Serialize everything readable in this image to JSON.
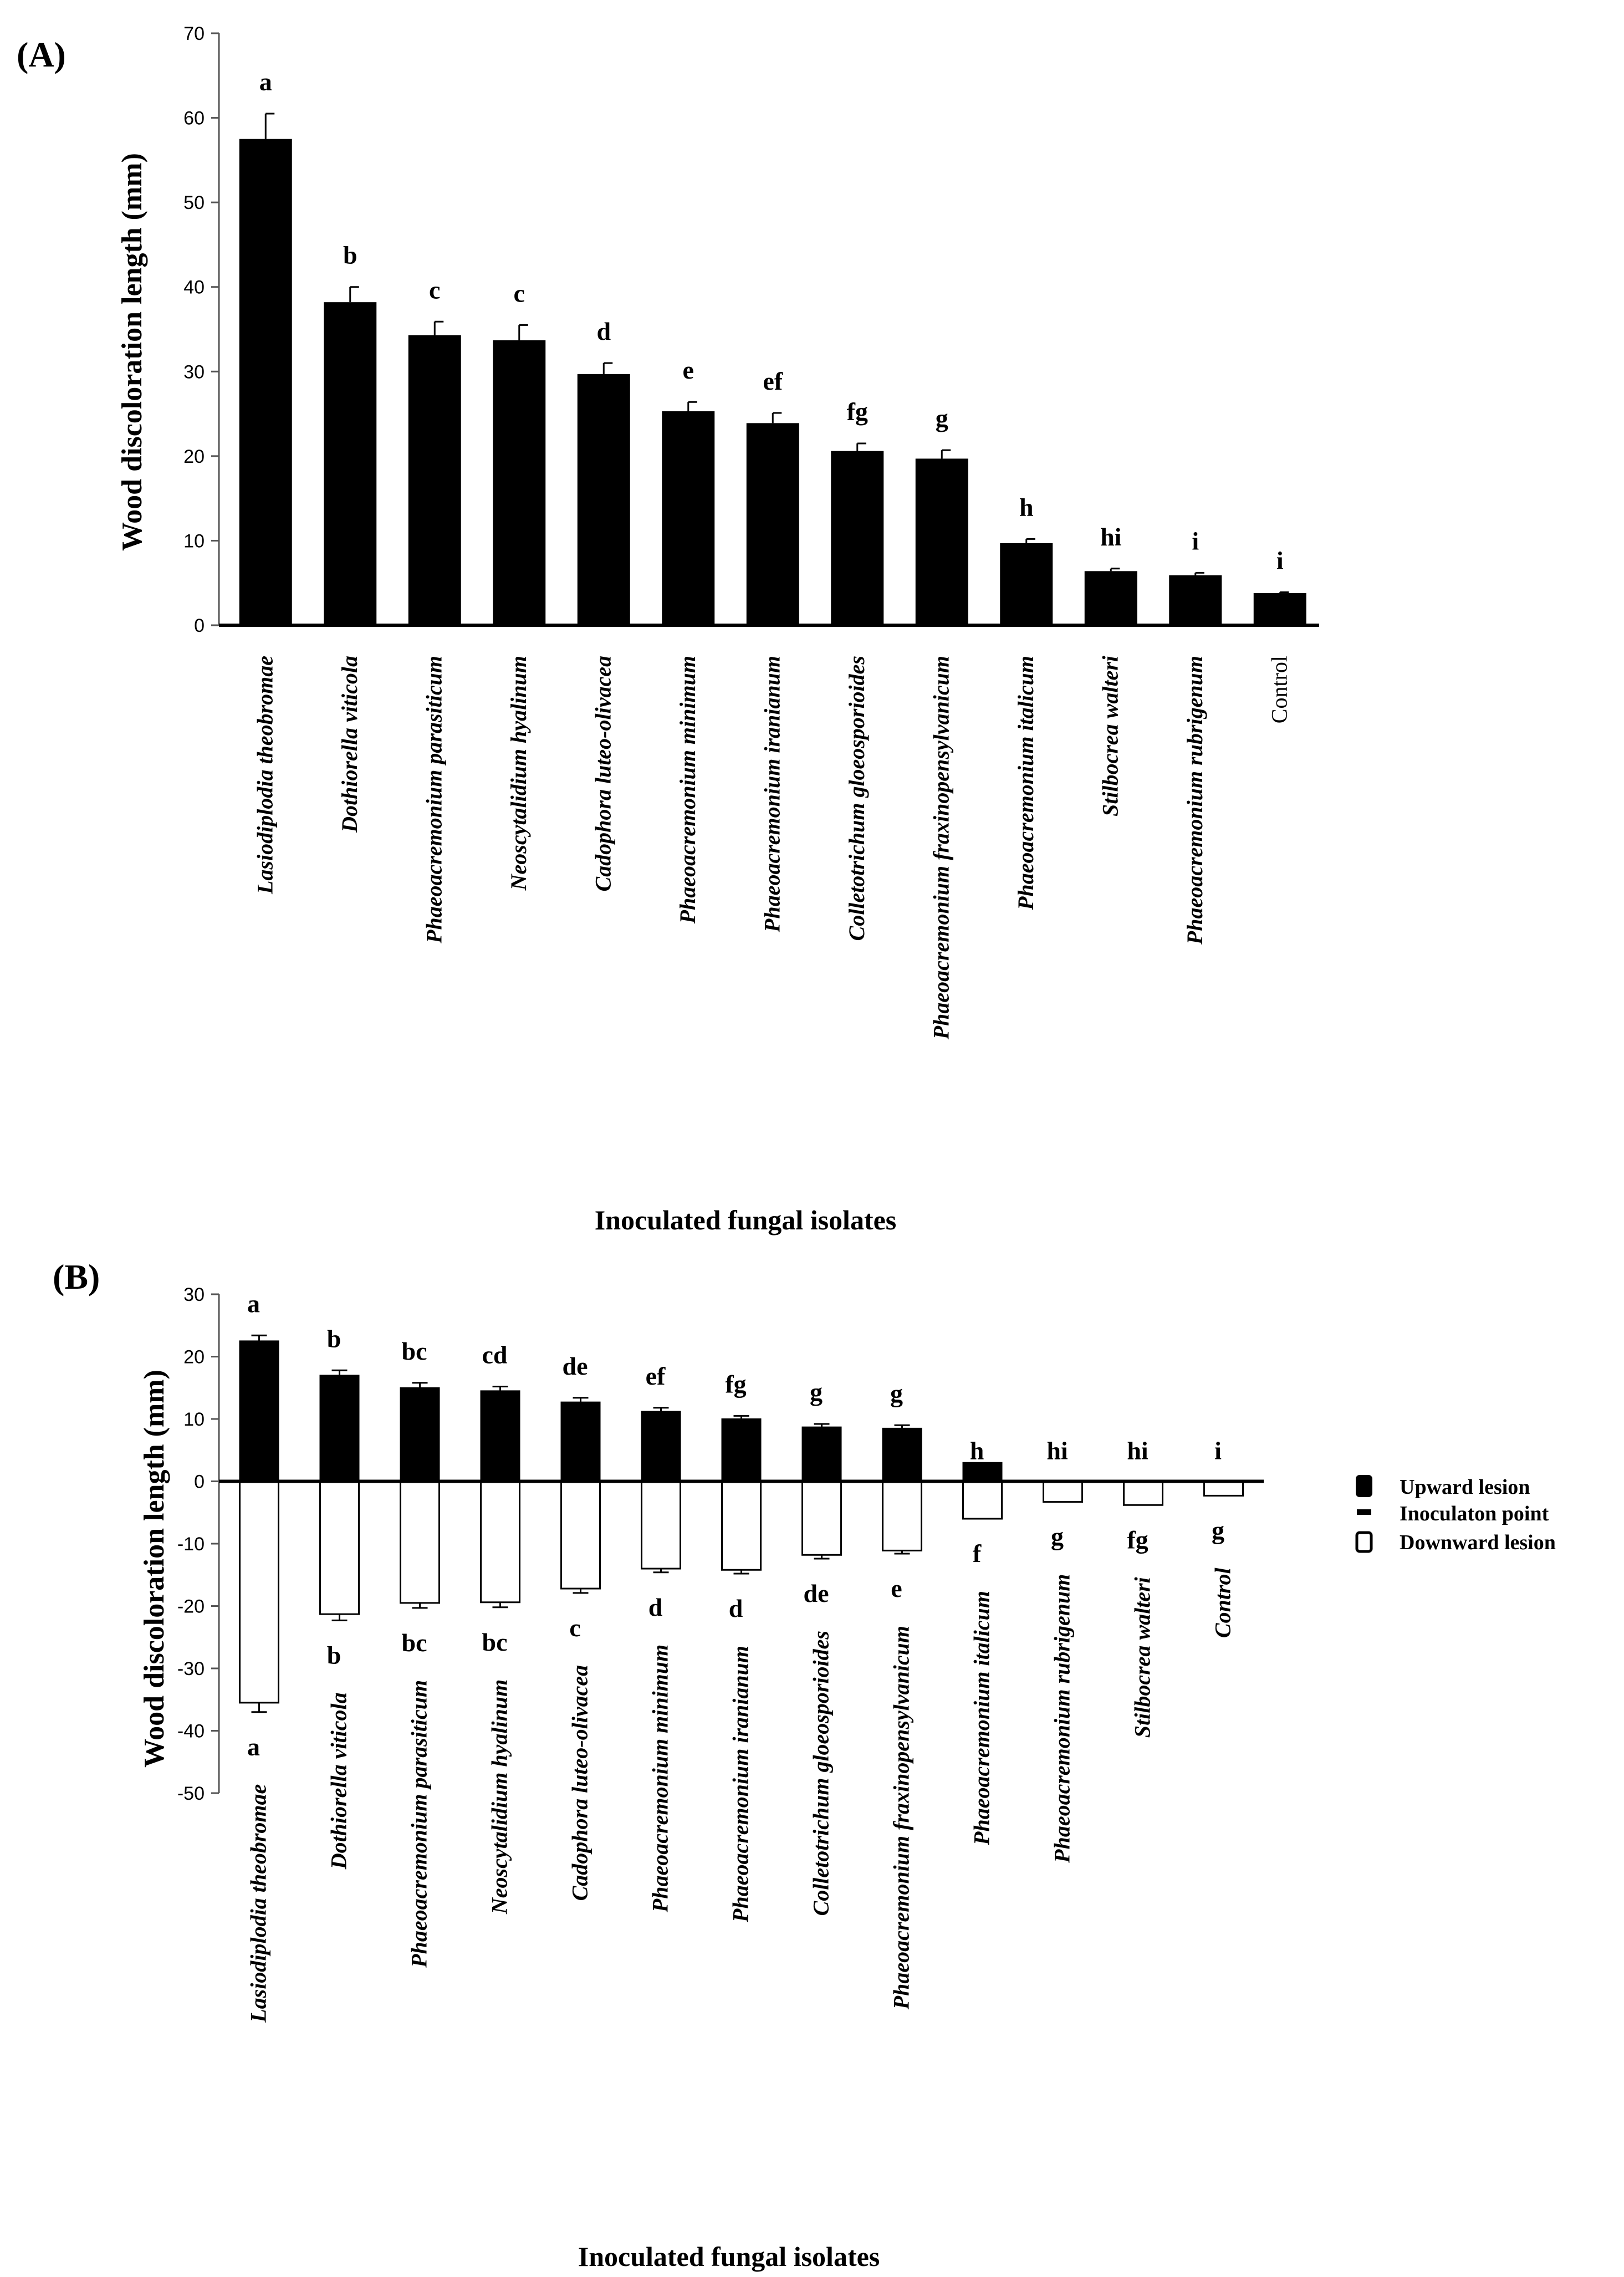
{
  "chart_data": [
    {
      "type": "bar",
      "panel": "(A)",
      "ylabel": "Wood discoloration length (mm)",
      "xlabel": "Inoculated fungal isolates",
      "ylim": [
        0,
        70
      ],
      "yticks": [
        0,
        10,
        20,
        30,
        40,
        50,
        60,
        70
      ],
      "categories": [
        "Lasiodiplodia theobromae",
        "Dothiorella viticola",
        "Phaeoacremonium parasiticum",
        "Neoscytalidium hyalinum",
        "Cadophora luteo-olivacea",
        "Phaeoacremonium minimum",
        "Phaeoacremonium iranianum",
        "Colletotrichum gloeosporioides",
        "Phaeoacremonium fraxinopensylvanicum",
        "Phaeoacremonium italicum",
        "Stilbocrea walteri",
        "Phaeoacremonium rubrigenum",
        "Control"
      ],
      "italic": [
        true,
        true,
        true,
        true,
        true,
        true,
        true,
        true,
        true,
        true,
        true,
        true,
        false
      ],
      "values": [
        57.5,
        38.2,
        34.3,
        33.7,
        29.7,
        25.3,
        23.9,
        20.6,
        19.7,
        9.7,
        6.4,
        5.9,
        3.8
      ],
      "errors": [
        3.0,
        1.8,
        1.6,
        1.8,
        1.3,
        1.1,
        1.2,
        0.9,
        1.0,
        0.5,
        0.3,
        0.3,
        0.1
      ],
      "letters": [
        "a",
        "b",
        "c",
        "c",
        "d",
        "e",
        "ef",
        "fg",
        "g",
        "h",
        "hi",
        "i",
        "i"
      ]
    },
    {
      "type": "bar",
      "panel": "(B)",
      "ylabel": "Wood discoloration length (mm)",
      "xlabel": "Inoculated fungal isolates",
      "ylim": [
        -50,
        30
      ],
      "yticks": [
        -50,
        -40,
        -30,
        -20,
        -10,
        0,
        10,
        20,
        30
      ],
      "categories": [
        "Lasiodiplodia theobromae",
        "Dothiorella viticola",
        "Phaeoacremonium parasiticum",
        "Neoscytalidium hyalinum",
        "Cadophora luteo-olivacea",
        "Phaeoacremonium minimum",
        "Phaeoacremonium iranianum",
        "Colletotrichum gloeosporioides",
        "Phaeoacremonium fraxinopensylvanicum",
        "Phaeoacremonium italicum",
        "Phaeoacremonium rubrigenum",
        "Stilbocrea walteri",
        "Control"
      ],
      "italic": [
        true,
        true,
        true,
        true,
        true,
        true,
        true,
        true,
        true,
        true,
        true,
        true,
        true
      ],
      "series": [
        {
          "name": "Upward lesion",
          "color": "#000000",
          "values": [
            22.5,
            17.0,
            15.0,
            14.5,
            12.7,
            11.2,
            10.0,
            8.7,
            8.5,
            3.0,
            0,
            0,
            0
          ],
          "errors": [
            0.9,
            0.8,
            0.8,
            0.7,
            0.7,
            0.6,
            0.5,
            0.5,
            0.5,
            0,
            0,
            0,
            0
          ],
          "letters": [
            "a",
            "b",
            "bc",
            "cd",
            "de",
            "ef",
            "fg",
            "g",
            "g",
            "h",
            "hi",
            "hi",
            "i"
          ]
        },
        {
          "name": "Downward lesion",
          "color": "#ffffff",
          "values": [
            -35.5,
            -21.3,
            -19.5,
            -19.4,
            -17.2,
            -14.0,
            -14.2,
            -11.8,
            -11.1,
            -6.0,
            -3.3,
            -3.8,
            -2.3
          ],
          "errors": [
            1.5,
            1.0,
            0.8,
            0.8,
            0.7,
            0.6,
            0.6,
            0.6,
            0.5,
            0,
            0,
            0,
            0
          ],
          "letters": [
            "a",
            "b",
            "bc",
            "bc",
            "c",
            "d",
            "d",
            "de",
            "e",
            "f",
            "g",
            "fg",
            "g"
          ]
        }
      ],
      "legend": {
        "position": "right",
        "entries": [
          "Upward lesion",
          "Inoculaton point",
          "Downward lesion"
        ]
      }
    }
  ]
}
